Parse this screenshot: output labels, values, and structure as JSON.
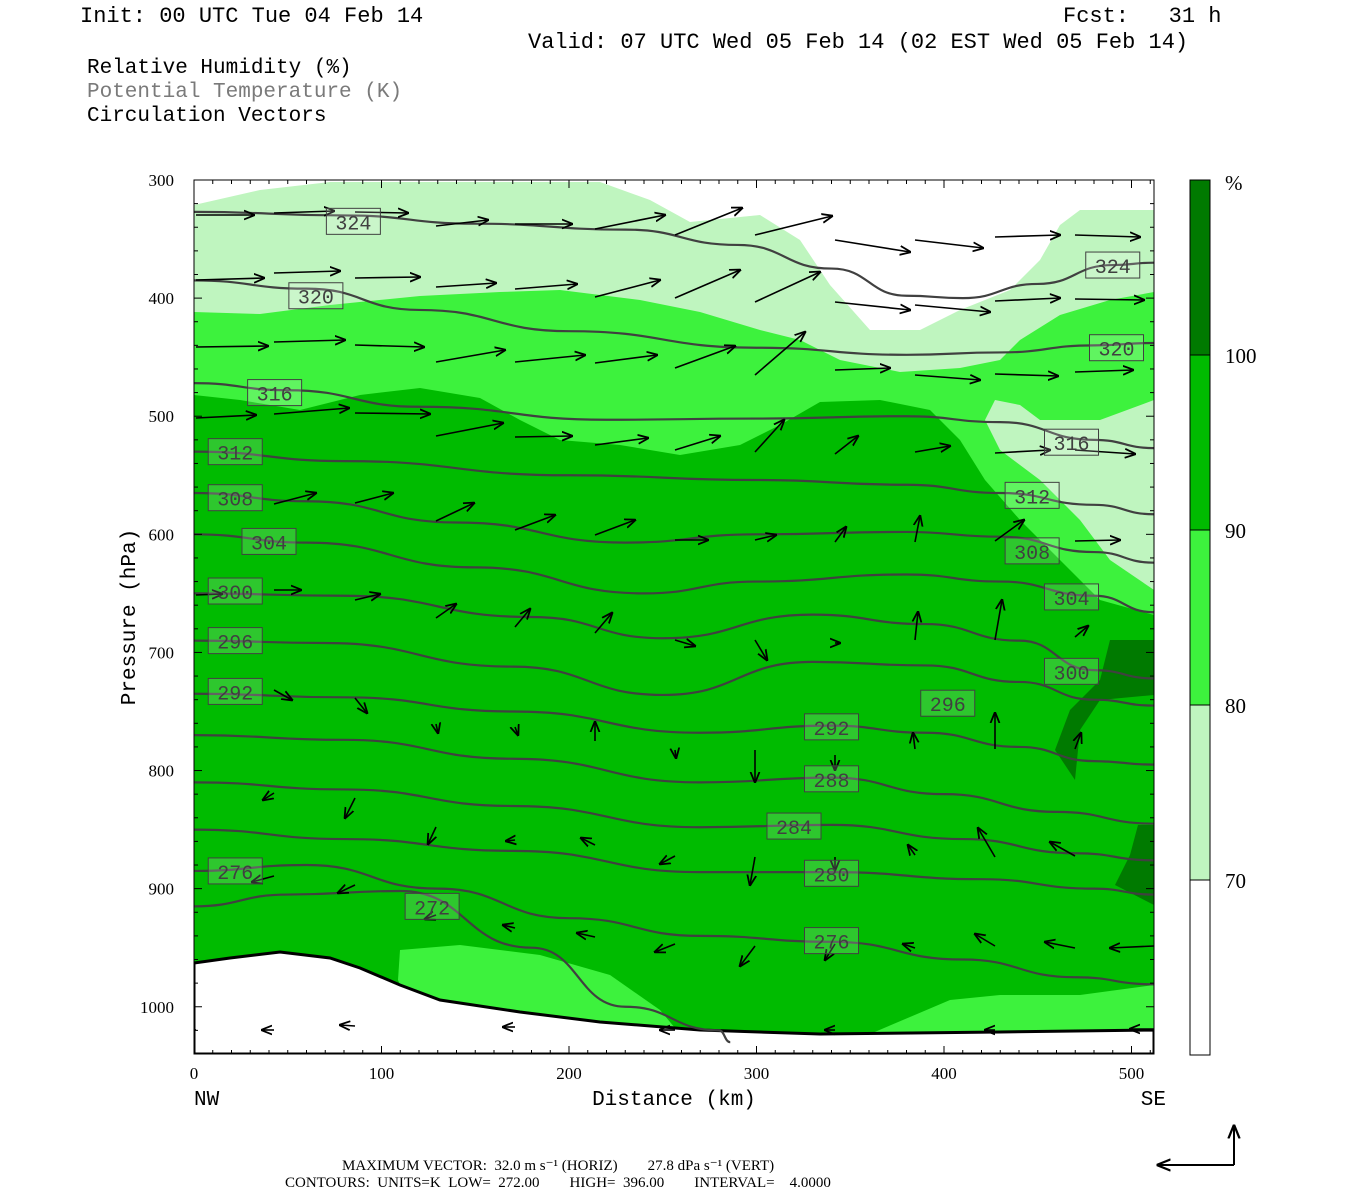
{
  "header": {
    "init": "Init: 00 UTC Tue 04 Feb 14",
    "fcst": "Fcst:   31 h",
    "valid": "Valid: 07 UTC Wed 05 Feb 14 (02 EST Wed 05 Feb 14)"
  },
  "legend": {
    "rh": "Relative Humidity (%)",
    "theta": "Potential Temperature (K)",
    "vectors": "Circulation Vectors"
  },
  "footer": {
    "max_vector": "MAXIMUM VECTOR:  32.0 m s⁻¹ (HORIZ)        27.8 dPa s⁻¹ (VERT)",
    "contours": "CONTOURS:  UNITS=K  LOW=  272.00        HIGH=  396.00        INTERVAL=    4.0000"
  },
  "colors": {
    "rh_70_80": "#bff5bf",
    "rh_80_90": "#3df23d",
    "rh_90_100": "#00bb00",
    "rh_100": "#007a00",
    "isentrope": "#404040",
    "vector": "#000000"
  },
  "chart_data": {
    "type": "cross-section",
    "xlabel": "Distance (km)",
    "ylabel": "Pressure (hPa)",
    "xlim": [
      0,
      512
    ],
    "ylim": [
      1040,
      300
    ],
    "x_ticks": [
      "0",
      "100",
      "200",
      "300",
      "400",
      "500"
    ],
    "x_tick_values": [
      0,
      100,
      200,
      300,
      400,
      500
    ],
    "y_ticks": [
      "300",
      "400",
      "500",
      "600",
      "700",
      "800",
      "900",
      "1000"
    ],
    "y_tick_values": [
      300,
      400,
      500,
      600,
      700,
      800,
      900,
      1000
    ],
    "left_end": "NW",
    "right_end": "SE",
    "colorbar": {
      "unit": "%",
      "levels": [
        "70",
        "80",
        "90",
        "100"
      ],
      "level_values": [
        70,
        80,
        90,
        100
      ]
    },
    "isentropes": [
      {
        "label": "324",
        "value": 324,
        "points": [
          [
            0,
            327
          ],
          [
            80,
            330
          ],
          [
            150,
            337
          ],
          [
            230,
            342
          ],
          [
            290,
            355
          ],
          [
            340,
            375
          ],
          [
            380,
            398
          ],
          [
            410,
            400
          ],
          [
            450,
            388
          ],
          [
            490,
            372
          ],
          [
            512,
            370
          ]
        ],
        "labels_at": [
          [
            85,
            335
          ],
          [
            490,
            372
          ]
        ]
      },
      {
        "label": "320",
        "value": 320,
        "points": [
          [
            0,
            385
          ],
          [
            60,
            392
          ],
          [
            120,
            410
          ],
          [
            200,
            428
          ],
          [
            300,
            442
          ],
          [
            380,
            448
          ],
          [
            430,
            446
          ],
          [
            480,
            440
          ],
          [
            512,
            438
          ]
        ],
        "labels_at": [
          [
            65,
            398
          ],
          [
            492,
            442
          ]
        ]
      },
      {
        "label": "316",
        "value": 316,
        "points": [
          [
            0,
            472
          ],
          [
            50,
            478
          ],
          [
            120,
            492
          ],
          [
            220,
            503
          ],
          [
            300,
            502
          ],
          [
            380,
            500
          ],
          [
            430,
            505
          ],
          [
            480,
            520
          ],
          [
            512,
            527
          ]
        ],
        "labels_at": [
          [
            43,
            480
          ],
          [
            468,
            522
          ]
        ]
      },
      {
        "label": "312",
        "value": 312,
        "points": [
          [
            0,
            530
          ],
          [
            80,
            538
          ],
          [
            200,
            550
          ],
          [
            300,
            554
          ],
          [
            380,
            558
          ],
          [
            430,
            565
          ],
          [
            480,
            575
          ],
          [
            512,
            583
          ]
        ],
        "labels_at": [
          [
            22,
            530
          ],
          [
            447,
            567
          ]
        ]
      },
      {
        "label": "308",
        "value": 308,
        "points": [
          [
            0,
            565
          ],
          [
            60,
            572
          ],
          [
            140,
            590
          ],
          [
            230,
            607
          ],
          [
            300,
            600
          ],
          [
            380,
            598
          ],
          [
            430,
            602
          ],
          [
            480,
            615
          ],
          [
            512,
            624
          ]
        ],
        "labels_at": [
          [
            22,
            569
          ],
          [
            447,
            614
          ]
        ]
      },
      {
        "label": "304",
        "value": 304,
        "points": [
          [
            0,
            600
          ],
          [
            60,
            607
          ],
          [
            150,
            628
          ],
          [
            240,
            650
          ],
          [
            300,
            640
          ],
          [
            380,
            634
          ],
          [
            430,
            640
          ],
          [
            480,
            652
          ],
          [
            512,
            666
          ]
        ],
        "labels_at": [
          [
            40,
            606
          ],
          [
            468,
            653
          ]
        ]
      },
      {
        "label": "300",
        "value": 300,
        "points": [
          [
            0,
            650
          ],
          [
            80,
            652
          ],
          [
            180,
            670
          ],
          [
            250,
            688
          ],
          [
            330,
            668
          ],
          [
            390,
            676
          ],
          [
            440,
            690
          ],
          [
            480,
            715
          ],
          [
            512,
            722
          ]
        ],
        "labels_at": [
          [
            22,
            648
          ],
          [
            468,
            716
          ]
        ]
      },
      {
        "label": "296",
        "value": 296,
        "points": [
          [
            0,
            690
          ],
          [
            70,
            692
          ],
          [
            170,
            712
          ],
          [
            250,
            736
          ],
          [
            330,
            708
          ],
          [
            390,
            711
          ],
          [
            440,
            725
          ],
          [
            480,
            740
          ],
          [
            512,
            745
          ]
        ],
        "labels_at": [
          [
            22,
            690
          ],
          [
            402,
            743
          ]
        ]
      },
      {
        "label": "292",
        "value": 292,
        "points": [
          [
            0,
            735
          ],
          [
            80,
            738
          ],
          [
            170,
            750
          ],
          [
            270,
            768
          ],
          [
            340,
            762
          ],
          [
            390,
            768
          ],
          [
            440,
            780
          ],
          [
            480,
            792
          ],
          [
            512,
            795
          ]
        ],
        "labels_at": [
          [
            22,
            733
          ],
          [
            340,
            763
          ]
        ]
      },
      {
        "label": "288",
        "value": 288,
        "points": [
          [
            0,
            770
          ],
          [
            80,
            774
          ],
          [
            170,
            790
          ],
          [
            270,
            810
          ],
          [
            340,
            806
          ],
          [
            400,
            820
          ],
          [
            460,
            835
          ],
          [
            512,
            845
          ]
        ],
        "labels_at": [
          [
            340,
            807
          ]
        ]
      },
      {
        "label": "284",
        "value": 284,
        "points": [
          [
            0,
            810
          ],
          [
            80,
            816
          ],
          [
            170,
            830
          ],
          [
            270,
            848
          ],
          [
            340,
            846
          ],
          [
            410,
            858
          ],
          [
            470,
            870
          ],
          [
            512,
            876
          ]
        ],
        "labels_at": [
          [
            320,
            847
          ]
        ]
      },
      {
        "label": "280",
        "value": 280,
        "points": [
          [
            0,
            850
          ],
          [
            80,
            858
          ],
          [
            170,
            868
          ],
          [
            270,
            886
          ],
          [
            340,
            886
          ],
          [
            420,
            892
          ],
          [
            480,
            900
          ],
          [
            512,
            905
          ]
        ],
        "labels_at": [
          [
            340,
            887
          ]
        ]
      },
      {
        "label": "276",
        "value": 276,
        "points": [
          [
            0,
            885
          ],
          [
            60,
            880
          ],
          [
            130,
            900
          ],
          [
            200,
            925
          ],
          [
            270,
            940
          ],
          [
            340,
            945
          ],
          [
            410,
            960
          ],
          [
            470,
            975
          ],
          [
            512,
            981
          ]
        ],
        "labels_at": [
          [
            22,
            885
          ],
          [
            340,
            944
          ]
        ]
      },
      {
        "label": "272",
        "value": 272,
        "points": [
          [
            0,
            915
          ],
          [
            50,
            905
          ],
          [
            110,
            902
          ],
          [
            180,
            950
          ],
          [
            230,
            1000
          ],
          [
            280,
            1020
          ],
          [
            286,
            1030
          ]
        ],
        "labels_at": [
          [
            127,
            915
          ]
        ]
      }
    ]
  }
}
